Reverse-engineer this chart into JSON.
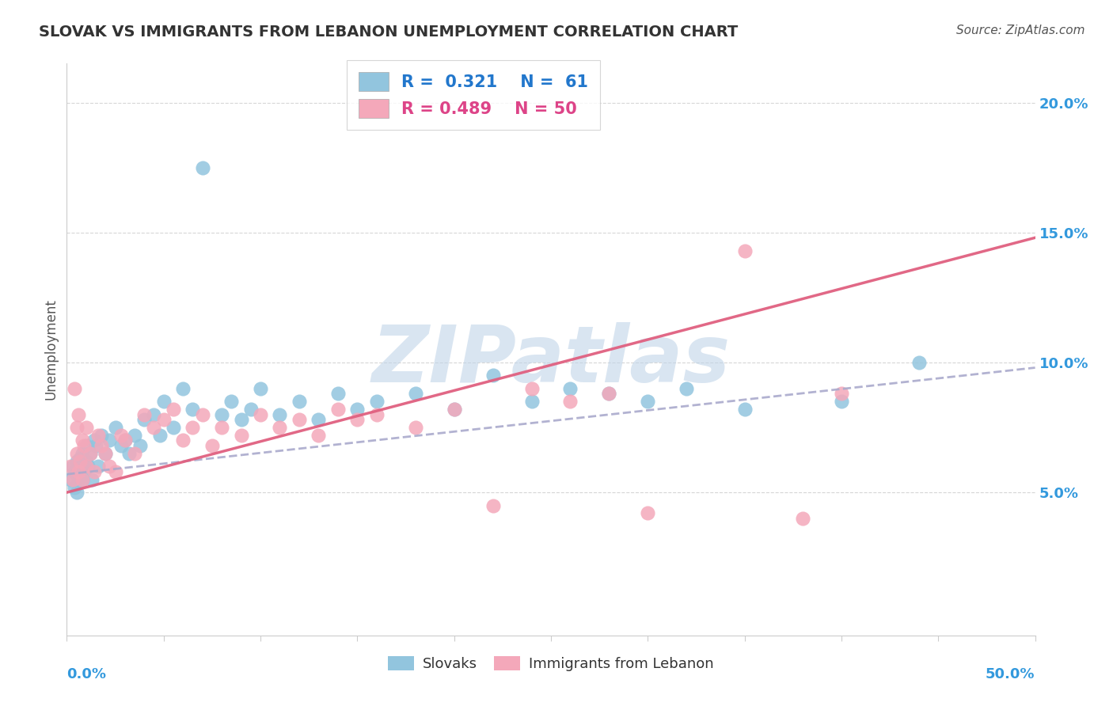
{
  "title": "SLOVAK VS IMMIGRANTS FROM LEBANON UNEMPLOYMENT CORRELATION CHART",
  "source": "Source: ZipAtlas.com",
  "ylabel": "Unemployment",
  "y_ticks": [
    "5.0%",
    "10.0%",
    "15.0%",
    "20.0%"
  ],
  "y_tick_vals": [
    0.05,
    0.1,
    0.15,
    0.2
  ],
  "xlim": [
    0.0,
    0.5
  ],
  "ylim": [
    -0.005,
    0.215
  ],
  "r_slovak": 0.321,
  "n_slovak": 61,
  "r_lebanon": 0.489,
  "n_lebanon": 50,
  "color_slovak": "#92C5DE",
  "color_lebanon": "#F4A8BA",
  "trend_slovak_color": "#AAAACC",
  "trend_lebanon_color": "#E06080",
  "watermark": "ZIPatlas",
  "watermark_color": "#C0D4E8",
  "title_color": "#333333",
  "source_color": "#555555",
  "legend_blue_color": "#2277CC",
  "legend_pink_color": "#DD4488",
  "tick_label_color": "#3399DD",
  "ylabel_color": "#555555",
  "slovak_x": [
    0.002,
    0.003,
    0.004,
    0.004,
    0.005,
    0.005,
    0.006,
    0.006,
    0.007,
    0.007,
    0.008,
    0.008,
    0.009,
    0.009,
    0.01,
    0.01,
    0.011,
    0.012,
    0.013,
    0.014,
    0.015,
    0.016,
    0.018,
    0.02,
    0.022,
    0.025,
    0.028,
    0.03,
    0.032,
    0.035,
    0.038,
    0.04,
    0.045,
    0.048,
    0.05,
    0.055,
    0.06,
    0.065,
    0.07,
    0.08,
    0.085,
    0.09,
    0.095,
    0.1,
    0.11,
    0.12,
    0.13,
    0.14,
    0.15,
    0.16,
    0.18,
    0.2,
    0.22,
    0.24,
    0.26,
    0.28,
    0.3,
    0.32,
    0.35,
    0.4,
    0.44
  ],
  "slovak_y": [
    0.055,
    0.06,
    0.052,
    0.058,
    0.05,
    0.062,
    0.055,
    0.06,
    0.058,
    0.063,
    0.055,
    0.065,
    0.06,
    0.058,
    0.062,
    0.068,
    0.06,
    0.065,
    0.055,
    0.07,
    0.068,
    0.06,
    0.072,
    0.065,
    0.07,
    0.075,
    0.068,
    0.07,
    0.065,
    0.072,
    0.068,
    0.078,
    0.08,
    0.072,
    0.085,
    0.075,
    0.09,
    0.082,
    0.175,
    0.08,
    0.085,
    0.078,
    0.082,
    0.09,
    0.08,
    0.085,
    0.078,
    0.088,
    0.082,
    0.085,
    0.088,
    0.082,
    0.095,
    0.085,
    0.09,
    0.088,
    0.085,
    0.09,
    0.082,
    0.085,
    0.1
  ],
  "lebanon_x": [
    0.002,
    0.003,
    0.004,
    0.005,
    0.005,
    0.006,
    0.006,
    0.007,
    0.008,
    0.008,
    0.009,
    0.01,
    0.01,
    0.012,
    0.014,
    0.016,
    0.018,
    0.02,
    0.022,
    0.025,
    0.028,
    0.03,
    0.035,
    0.04,
    0.045,
    0.05,
    0.055,
    0.06,
    0.065,
    0.07,
    0.075,
    0.08,
    0.09,
    0.1,
    0.11,
    0.12,
    0.13,
    0.14,
    0.15,
    0.16,
    0.18,
    0.2,
    0.22,
    0.24,
    0.26,
    0.28,
    0.3,
    0.35,
    0.38,
    0.4
  ],
  "lebanon_y": [
    0.06,
    0.055,
    0.09,
    0.065,
    0.075,
    0.058,
    0.08,
    0.062,
    0.055,
    0.07,
    0.068,
    0.06,
    0.075,
    0.065,
    0.058,
    0.072,
    0.068,
    0.065,
    0.06,
    0.058,
    0.072,
    0.07,
    0.065,
    0.08,
    0.075,
    0.078,
    0.082,
    0.07,
    0.075,
    0.08,
    0.068,
    0.075,
    0.072,
    0.08,
    0.075,
    0.078,
    0.072,
    0.082,
    0.078,
    0.08,
    0.075,
    0.082,
    0.045,
    0.09,
    0.085,
    0.088,
    0.042,
    0.143,
    0.04,
    0.088
  ],
  "trend_slovak_start_y": 0.057,
  "trend_slovak_end_y": 0.098,
  "trend_lebanon_start_y": 0.05,
  "trend_lebanon_end_y": 0.148
}
